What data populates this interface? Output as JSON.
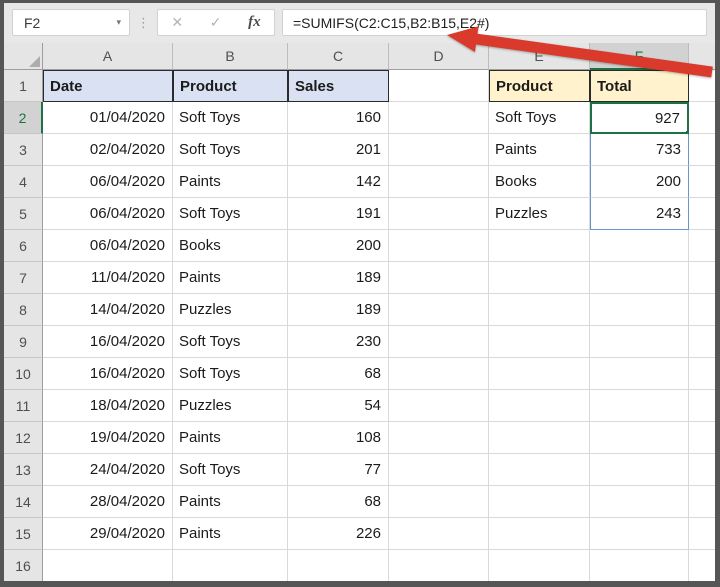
{
  "toolbar": {
    "name_box_value": "F2",
    "name_box_dropdown_icon": "▾",
    "grip_icon": "⋮",
    "cancel_icon": "✕",
    "enter_icon": "✓",
    "insert_function_label": "fx",
    "formula": "=SUMIFS(C2:C15,B2:B15,E2#)"
  },
  "sheet": {
    "column_letters": [
      "A",
      "B",
      "C",
      "D",
      "E",
      "F"
    ],
    "row_numbers": [
      1,
      2,
      3,
      4,
      5,
      6,
      7,
      8,
      9,
      10,
      11,
      12,
      13,
      14,
      15,
      16
    ],
    "active_cell": "F2",
    "active_column": "F",
    "active_row": 2,
    "headers": {
      "A": "Date",
      "B": "Product",
      "C": "Sales",
      "E": "Product",
      "F": "Total"
    },
    "sales_table": [
      {
        "row": 2,
        "date": "01/04/2020",
        "product": "Soft Toys",
        "sales": 160
      },
      {
        "row": 3,
        "date": "02/04/2020",
        "product": "Soft Toys",
        "sales": 201
      },
      {
        "row": 4,
        "date": "06/04/2020",
        "product": "Paints",
        "sales": 142
      },
      {
        "row": 5,
        "date": "06/04/2020",
        "product": "Soft Toys",
        "sales": 191
      },
      {
        "row": 6,
        "date": "06/04/2020",
        "product": "Books",
        "sales": 200
      },
      {
        "row": 7,
        "date": "11/04/2020",
        "product": "Paints",
        "sales": 189
      },
      {
        "row": 8,
        "date": "14/04/2020",
        "product": "Puzzles",
        "sales": 189
      },
      {
        "row": 9,
        "date": "16/04/2020",
        "product": "Soft Toys",
        "sales": 230
      },
      {
        "row": 10,
        "date": "16/04/2020",
        "product": "Soft Toys",
        "sales": 68
      },
      {
        "row": 11,
        "date": "18/04/2020",
        "product": "Puzzles",
        "sales": 54
      },
      {
        "row": 12,
        "date": "19/04/2020",
        "product": "Paints",
        "sales": 108
      },
      {
        "row": 13,
        "date": "24/04/2020",
        "product": "Soft Toys",
        "sales": 77
      },
      {
        "row": 14,
        "date": "28/04/2020",
        "product": "Paints",
        "sales": 68
      },
      {
        "row": 15,
        "date": "29/04/2020",
        "product": "Paints",
        "sales": 226
      }
    ],
    "summary_table": [
      {
        "row": 2,
        "product": "Soft Toys",
        "total": 927
      },
      {
        "row": 3,
        "product": "Paints",
        "total": 733
      },
      {
        "row": 4,
        "product": "Books",
        "total": 200
      },
      {
        "row": 5,
        "product": "Puzzles",
        "total": 243
      }
    ],
    "spill_range": "F2:F5"
  },
  "colors": {
    "header_fill_blue": "#D9E1F2",
    "header_fill_tan": "#FFF2CC",
    "selection_green": "#1E7145",
    "spill_border_blue": "#6A93CF",
    "arrow_red": "#D93A2B"
  }
}
